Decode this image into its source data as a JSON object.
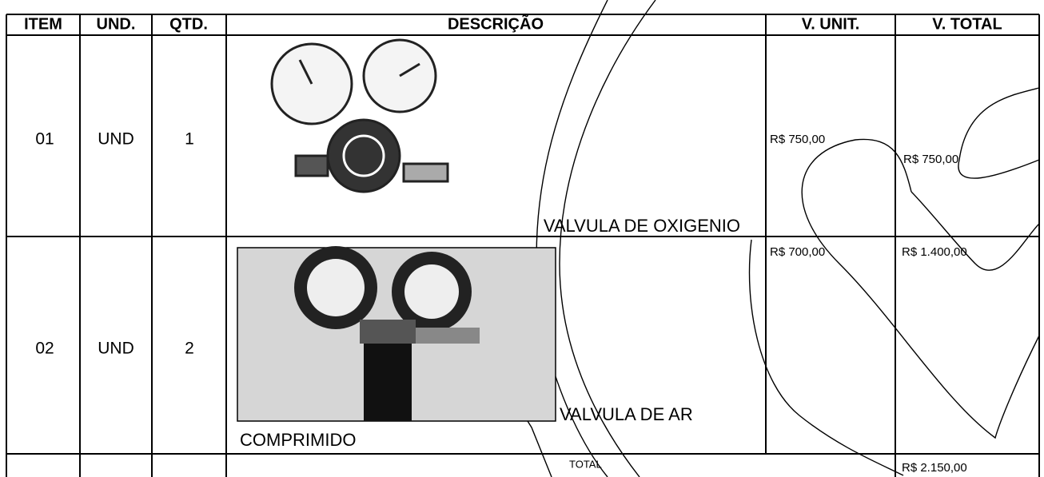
{
  "header": {
    "columns": [
      "ITEM",
      "UND.",
      "QTD.",
      "DESCRIÇÃO",
      "V. UNIT.",
      "V. TOTAL"
    ]
  },
  "rows": [
    {
      "item": "01",
      "unit": "UND",
      "qty": "1",
      "description": [
        "VALVULA DE OXIGENIO"
      ],
      "unit_price": "R$ 750,00",
      "total_price": "R$ 750,00"
    },
    {
      "item": "02",
      "unit": "UND",
      "qty": "2",
      "description": [
        "VALVULA DE AR",
        "COMPRIMIDO"
      ],
      "unit_price": "R$ 700,00",
      "total_price": "R$ 1.400,00"
    }
  ],
  "total": {
    "label": "TOTAL",
    "value": "R$ 2.150,00"
  }
}
